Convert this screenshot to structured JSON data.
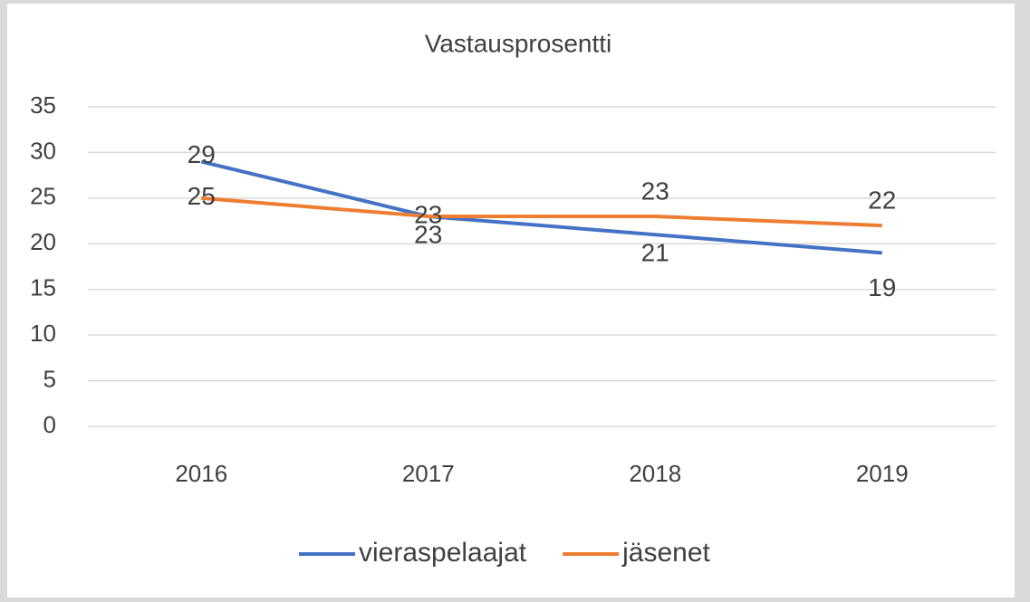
{
  "chart_data": {
    "type": "line",
    "title": "Vastausprosentti",
    "categories": [
      "2016",
      "2017",
      "2018",
      "2019"
    ],
    "series": [
      {
        "name": "vieraspelaajat",
        "color": "#4472c4",
        "values": [
          29,
          23,
          21,
          19
        ]
      },
      {
        "name": "jäsenet",
        "color": "#ed7d31",
        "values": [
          25,
          23,
          23,
          22
        ]
      }
    ],
    "ylim": [
      0,
      35
    ],
    "yticks": [
      0,
      5,
      10,
      15,
      20,
      25,
      30,
      35
    ],
    "grid": true,
    "legend": "bottom"
  }
}
